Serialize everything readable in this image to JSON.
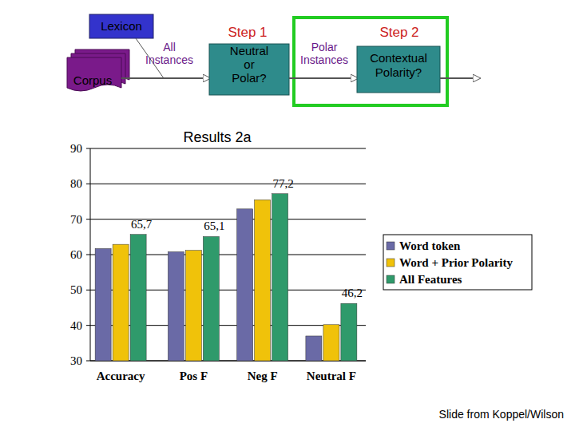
{
  "diagram": {
    "nodes": [
      {
        "label": "Lexicon"
      },
      {
        "label": "Corpus"
      },
      {
        "label": "Neutral or Polar?"
      },
      {
        "label": "Contextual Polarity?"
      }
    ],
    "edges": [
      {
        "label": "All Instances"
      },
      {
        "label": "Polar Instances"
      }
    ],
    "steps": [
      "Step 1",
      "Step 2"
    ]
  },
  "chart_data": {
    "type": "bar",
    "title": "Results 2a",
    "categories": [
      "Accuracy",
      "Pos F",
      "Neg F",
      "Neutral F"
    ],
    "series": [
      {
        "name": "Word token",
        "color": "#6a6aa6",
        "values": [
          61.7,
          60.8,
          72.9,
          37.0
        ]
      },
      {
        "name": "Word + Prior Polarity",
        "color": "#f0c20a",
        "values": [
          62.9,
          61.2,
          75.5,
          40.2
        ]
      },
      {
        "name": "All Features",
        "color": "#2f9a6b",
        "values": [
          65.7,
          65.1,
          77.2,
          46.2
        ],
        "value_labels": [
          "65,7",
          "65,1",
          "77,2",
          "46,2"
        ],
        "data_labels": true
      }
    ],
    "ylim": [
      30,
      90
    ],
    "yticks": [
      30,
      40,
      50,
      60,
      70,
      80,
      90
    ],
    "grid": true,
    "legend": "right"
  },
  "footer": "Slide from Koppel/Wilson"
}
